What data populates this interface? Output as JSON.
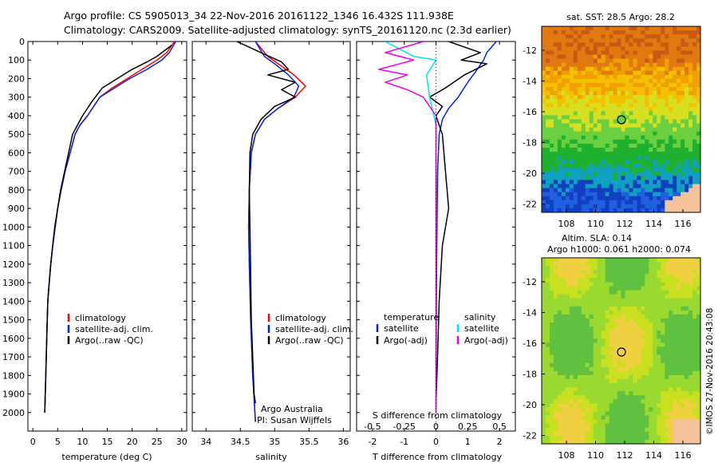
{
  "header": {
    "line1": "Argo profile: CS 5905013_34 22-Nov-2016 20161122_1346 16.432S 111.938E",
    "line2": "Climatology: CARS2009. Satellite-adjusted climatology: synTS_20161120.nc (2.3d earlier)"
  },
  "depth_axis": {
    "ticks": [
      "0",
      "100",
      "200",
      "300",
      "400",
      "500",
      "600",
      "700",
      "800",
      "900",
      "1000",
      "1100",
      "1200",
      "1300",
      "1400",
      "1500",
      "1600",
      "1700",
      "1800",
      "1900",
      "2000"
    ]
  },
  "chart_data": [
    {
      "type": "line",
      "name": "temperature",
      "xlabel": "temperature (deg C)",
      "ylabel": "depth",
      "xlim": [
        -1,
        31
      ],
      "ylim": [
        2100,
        0
      ],
      "xticks": [
        "0",
        "5",
        "10",
        "15",
        "20",
        "25",
        "30"
      ],
      "legend": [
        "climatology",
        "satellite-adj. clim.",
        "Argo(..raw -QC)"
      ],
      "series": [
        {
          "name": "climatology",
          "color": "#ff0000",
          "x": [
            28.5,
            27,
            25,
            22,
            19,
            16,
            13.5,
            11,
            9.5,
            8.5,
            7.5,
            6.5,
            5.7,
            5.0,
            4.5,
            4.0,
            3.6,
            3.3,
            3.0,
            2.8,
            2.6,
            2.4
          ],
          "y": [
            0,
            60,
            100,
            150,
            200,
            250,
            300,
            400,
            450,
            500,
            600,
            700,
            800,
            900,
            1000,
            1100,
            1200,
            1300,
            1400,
            1600,
            1800,
            2000
          ]
        },
        {
          "name": "satellite-adj. clim.",
          "color": "#0022ee",
          "x": [
            28.8,
            27.5,
            26,
            23,
            19.5,
            16.5,
            13.5,
            11,
            9.5,
            8.5,
            7.5,
            6.5,
            5.7,
            5.0,
            4.5,
            4.0,
            3.6,
            3.3,
            3.0,
            2.8,
            2.6,
            2.4
          ],
          "y": [
            0,
            60,
            100,
            150,
            200,
            250,
            300,
            400,
            450,
            500,
            600,
            700,
            800,
            900,
            1000,
            1100,
            1200,
            1300,
            1400,
            1600,
            1800,
            2000
          ]
        },
        {
          "name": "Argo(..raw -QC)",
          "color": "#000000",
          "x": [
            28,
            25,
            23,
            20,
            17,
            14,
            12,
            10,
            9,
            8,
            7.2,
            6.4,
            5.6,
            5.0,
            4.4,
            4.0,
            3.6,
            3.3,
            3.0,
            2.8,
            2.6,
            2.4
          ],
          "y": [
            20,
            80,
            110,
            150,
            200,
            250,
            320,
            400,
            450,
            500,
            600,
            700,
            800,
            900,
            1000,
            1100,
            1200,
            1300,
            1400,
            1600,
            1800,
            2000
          ]
        }
      ]
    },
    {
      "type": "line",
      "name": "salinity",
      "xlabel": "salinity",
      "xlim": [
        33.8,
        36.1
      ],
      "ylim": [
        2100,
        0
      ],
      "xticks": [
        "34",
        "34.5",
        "35",
        "35.5",
        "36"
      ],
      "legend": [
        "climatology",
        "satellite-adj. clim.",
        "Argo(..raw -QC)"
      ],
      "annotation": [
        "Argo Australia",
        "PI: Susan Wijffels"
      ],
      "series": [
        {
          "name": "climatology",
          "color": "#ff0000",
          "x": [
            34.72,
            34.9,
            35.05,
            35.28,
            35.45,
            35.3,
            35.05,
            34.85,
            34.72,
            34.66,
            34.63,
            34.62,
            34.63,
            34.65,
            34.68,
            34.72
          ],
          "y": [
            0,
            80,
            120,
            180,
            240,
            300,
            360,
            420,
            500,
            600,
            800,
            1000,
            1200,
            1500,
            1800,
            2050
          ]
        },
        {
          "name": "satellite-adj. clim.",
          "color": "#0022ee",
          "x": [
            34.72,
            34.85,
            35.0,
            35.2,
            35.35,
            35.28,
            35.05,
            34.85,
            34.72,
            34.66,
            34.63,
            34.62,
            34.63,
            34.65,
            34.68,
            34.72
          ],
          "y": [
            0,
            80,
            120,
            180,
            240,
            300,
            360,
            420,
            500,
            600,
            800,
            1000,
            1200,
            1500,
            1800,
            2050
          ]
        },
        {
          "name": "Argo(..raw -QC)",
          "color": "#000000",
          "x": [
            34.45,
            34.8,
            35.1,
            35.2,
            34.9,
            35.3,
            35.1,
            35.3,
            35.0,
            34.8,
            34.68,
            34.64,
            34.63,
            34.64,
            34.66,
            34.7,
            34.72
          ],
          "y": [
            0,
            60,
            110,
            150,
            180,
            220,
            260,
            300,
            350,
            420,
            500,
            600,
            800,
            1000,
            1500,
            1900,
            1950
          ]
        }
      ]
    },
    {
      "type": "line",
      "name": "difference from climatology",
      "xlabel": "T difference from climatology",
      "xlabel_top": "S difference from climatology",
      "xlim": [
        -2.5,
        2.5
      ],
      "ylim": [
        2100,
        0
      ],
      "xticks": [
        "-2",
        "-1",
        "0",
        "1",
        "2"
      ],
      "xticks_top": [
        "-0.5",
        "-0.25",
        "0",
        "0.25",
        "0.5"
      ],
      "legend_left_title": "temperature",
      "legend_right_title": "salinity",
      "legend": [
        "satellite",
        "Argo(-adj)",
        "satellite",
        "Argo(-adj)"
      ],
      "series": [
        {
          "name": "temperature satellite",
          "color": "#0022ee",
          "x": [
            1.9,
            1.6,
            1.5,
            1.3,
            1.0,
            0.7,
            0.4,
            0.2,
            0.1,
            0.05,
            0.02,
            0.0
          ],
          "y": [
            0,
            60,
            100,
            150,
            220,
            300,
            360,
            420,
            500,
            700,
            1200,
            2000
          ]
        },
        {
          "name": "temperature Argo(-adj)",
          "color": "#000000",
          "x": [
            0.4,
            1.4,
            0.8,
            1.6,
            0.9,
            0.3,
            -0.2,
            0.2,
            0.0,
            0.2,
            0.3,
            0.4,
            0.2,
            0.1,
            0.05,
            0.0
          ],
          "y": [
            0,
            60,
            100,
            120,
            180,
            250,
            300,
            350,
            400,
            500,
            700,
            900,
            1100,
            1400,
            1700,
            1950
          ]
        },
        {
          "name": "salinity satellite",
          "color": "#00e5ee",
          "x": [
            -1.6,
            -0.7,
            0.0,
            -0.3,
            -0.2,
            0.0,
            0.0
          ],
          "y": [
            0,
            80,
            100,
            180,
            300,
            450,
            2000
          ]
        },
        {
          "name": "salinity Argo(-adj)",
          "color": "#ee00ee",
          "x": [
            -0.4,
            -1.6,
            -0.7,
            -1.8,
            -0.9,
            -1.6,
            -0.9,
            -0.4,
            0.0,
            0.0
          ],
          "y": [
            0,
            60,
            100,
            150,
            180,
            220,
            260,
            300,
            400,
            2000
          ]
        }
      ]
    },
    {
      "type": "heatmap",
      "name": "SST map",
      "title": "sat. SST: 28.5 Argo: 28.2",
      "xticks": [
        "108",
        "110",
        "112",
        "114",
        "116"
      ],
      "yticks": [
        "-12",
        "-14",
        "-16",
        "-18",
        "-20",
        "-22"
      ],
      "marker": {
        "lon": 111.938,
        "lat": -16.432
      }
    },
    {
      "type": "heatmap",
      "name": "SLA map",
      "title_line1": "Altim. SLA: 0.14",
      "title_line2": "Argo h1000: 0.061 h2000: 0.074",
      "xticks": [
        "108",
        "110",
        "112",
        "114",
        "116"
      ],
      "yticks": [
        "-12",
        "-14",
        "-16",
        "-18",
        "-20",
        "-22"
      ],
      "marker": {
        "lon": 111.938,
        "lat": -16.432
      }
    }
  ],
  "side_label": "©IMOS 27-Nov-2016 20:43:08",
  "colors": {
    "climatology": "#ff0000",
    "satellite": "#0022ee",
    "argo": "#000000",
    "salinity_satellite": "#00e5ee",
    "salinity_argo": "#ee00ee"
  }
}
